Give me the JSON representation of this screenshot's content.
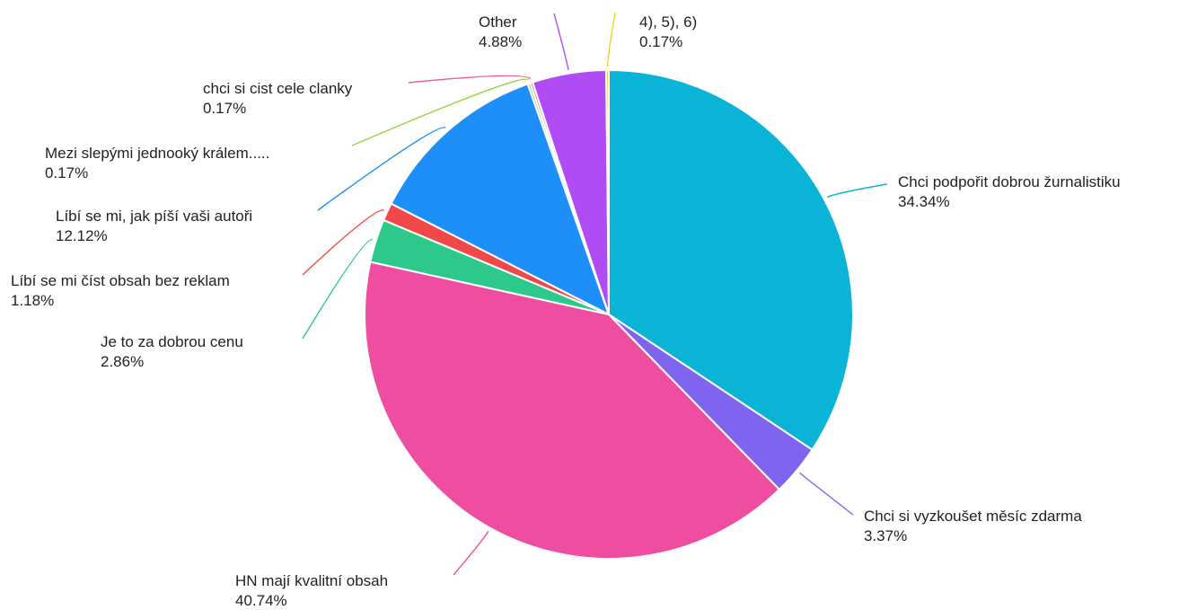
{
  "chart_data": {
    "type": "pie",
    "title": "",
    "slices": [
      {
        "label": "Chci podpořit dobrou žurnalistiku",
        "value": 34.34,
        "value_label": "34.34%",
        "color": "#0bb4d6"
      },
      {
        "label": "Chci si vyzkoušet měsíc zdarma",
        "value": 3.37,
        "value_label": "3.37%",
        "color": "#7f64f0"
      },
      {
        "label": "HN mají kvalitní obsah",
        "value": 40.74,
        "value_label": "40.74%",
        "color": "#ef4da0"
      },
      {
        "label": "Je to za dobrou cenu",
        "value": 2.86,
        "value_label": "2.86%",
        "color": "#2cc98a"
      },
      {
        "label": "Líbí se mi číst obsah bez reklam",
        "value": 1.18,
        "value_label": "1.18%",
        "color": "#f2484a"
      },
      {
        "label": "Líbí se mi, jak píší vaši autoři",
        "value": 12.12,
        "value_label": "12.12%",
        "color": "#1e8ff8"
      },
      {
        "label": "Mezi slepými jednooký králem.....",
        "value": 0.17,
        "value_label": "0.17%",
        "color": "#9bd23c"
      },
      {
        "label": "chci si cist cele clanky",
        "value": 0.17,
        "value_label": "0.17%",
        "color": "#f25c8c"
      },
      {
        "label": "Other",
        "value": 4.88,
        "value_label": "4.88%",
        "color": "#b04cf5"
      },
      {
        "label": "4), 5), 6)",
        "value": 0.17,
        "value_label": "0.17%",
        "color": "#f2d02a"
      }
    ],
    "legend": "none"
  }
}
